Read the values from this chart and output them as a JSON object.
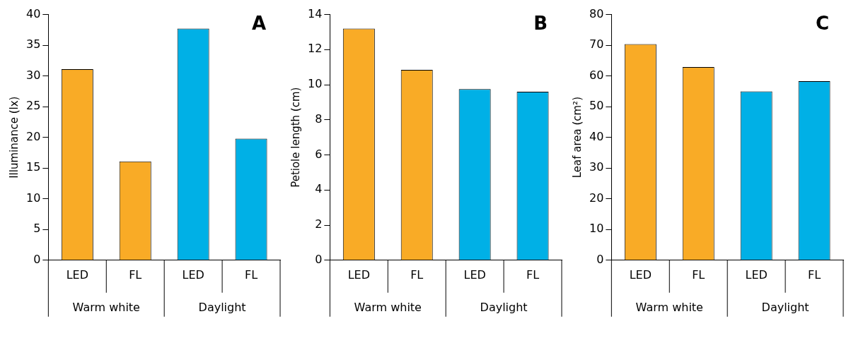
{
  "chart_data": [
    {
      "type": "bar",
      "title": "A",
      "ylabel": "Illuminance (lx)",
      "categories": [
        "LED",
        "FL",
        "LED",
        "FL"
      ],
      "values": [
        31.1,
        16.1,
        37.7,
        19.8
      ],
      "colors": [
        "#f9ab26",
        "#f9ab26",
        "#00b0e6",
        "#00b0e6"
      ],
      "ylim": [
        0,
        40
      ],
      "yticks": [
        0,
        5,
        10,
        15,
        20,
        25,
        30,
        35,
        40
      ],
      "grid": false,
      "annotations": [
        "Warm white",
        "Daylight"
      ]
    },
    {
      "type": "bar",
      "title": "B",
      "ylabel": "Petiole length (cm)",
      "categories": [
        "LED",
        "FL",
        "LED",
        "FL"
      ],
      "values": [
        13.2,
        10.85,
        9.75,
        9.6
      ],
      "colors": [
        "#f9ab26",
        "#f9ab26",
        "#00b0e6",
        "#00b0e6"
      ],
      "ylim": [
        0,
        14
      ],
      "yticks": [
        0,
        2,
        4,
        6,
        8,
        10,
        12,
        14
      ],
      "grid": false,
      "annotations": [
        "Warm white",
        "Daylight"
      ]
    },
    {
      "type": "bar",
      "title": "C",
      "ylabel": "Leaf area (cm²)",
      "categories": [
        "LED",
        "FL",
        "LED",
        "FL"
      ],
      "values": [
        70.4,
        62.9,
        55.0,
        58.3
      ],
      "colors": [
        "#f9ab26",
        "#f9ab26",
        "#00b0e6",
        "#00b0e6"
      ],
      "ylim": [
        0,
        80
      ],
      "yticks": [
        0,
        10,
        20,
        30,
        40,
        50,
        60,
        70,
        80
      ],
      "grid": false,
      "annotations": [
        "Warm white",
        "Daylight"
      ]
    }
  ]
}
